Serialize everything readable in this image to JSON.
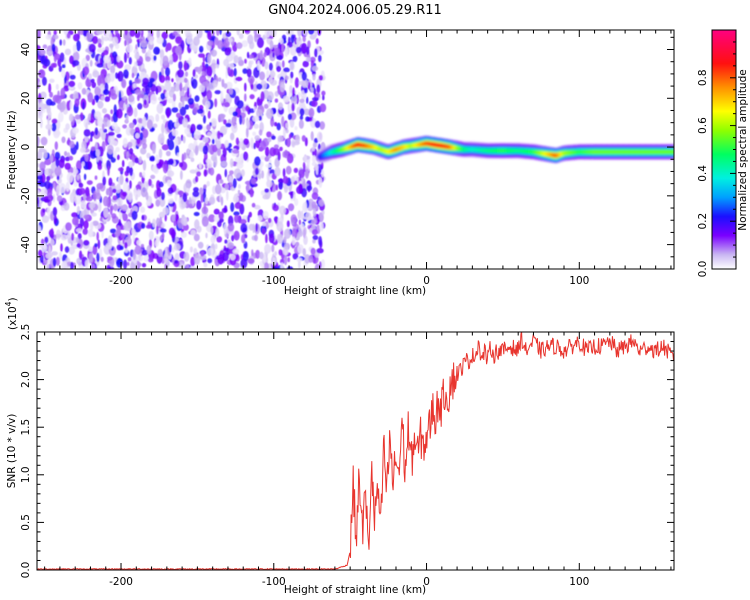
{
  "title": "GN04.2024.006.05.29.R11",
  "chart_data": [
    {
      "type": "heatmap",
      "xlabel": "Height of straight line (km)",
      "ylabel": "Frequency (Hz)",
      "xlim": [
        -255,
        162
      ],
      "ylim": [
        -50,
        48
      ],
      "x_ticks": [
        -200,
        -100,
        0,
        100
      ],
      "x_tick_labels": [
        "-200",
        "-100",
        "0",
        "100"
      ],
      "y_ticks": [
        -40,
        -20,
        0,
        20,
        40
      ],
      "y_tick_labels": [
        "-40",
        "-20",
        "0",
        "20",
        "40"
      ],
      "noise_region_x": [
        -255,
        -70
      ],
      "signal_track": {
        "x": [
          -70,
          -62,
          -55,
          -50,
          -45,
          -40,
          -35,
          -30,
          -25,
          -20,
          -15,
          -10,
          -5,
          0,
          5,
          10,
          15,
          20,
          25,
          30,
          40,
          50,
          60,
          70,
          80,
          85,
          90,
          100,
          110,
          120,
          130,
          140,
          150,
          162
        ],
        "y": [
          -4,
          -2,
          -1,
          0,
          1,
          0.5,
          0,
          -1,
          -2,
          -1,
          0,
          0.5,
          1,
          1.5,
          1,
          0.5,
          0,
          -0.5,
          -1,
          -1,
          -1.5,
          -1.5,
          -1.5,
          -2,
          -3,
          -3.5,
          -2.5,
          -2,
          -2,
          -2,
          -2,
          -2,
          -2,
          -2
        ],
        "amplitude": [
          0.2,
          0.4,
          0.55,
          0.7,
          0.85,
          0.8,
          0.7,
          0.6,
          0.65,
          0.75,
          0.7,
          0.6,
          0.7,
          0.8,
          0.85,
          0.85,
          0.8,
          0.6,
          0.45,
          0.4,
          0.45,
          0.5,
          0.45,
          0.5,
          0.7,
          0.8,
          0.6,
          0.5,
          0.55,
          0.55,
          0.55,
          0.55,
          0.55,
          0.55
        ]
      },
      "colorbar": {
        "label": "Normalized spectral amplitude",
        "range": [
          0,
          1
        ],
        "ticks": [
          0.0,
          0.2,
          0.4,
          0.6,
          0.8
        ],
        "tick_labels": [
          "0.0",
          "0.2",
          "0.4",
          "0.6",
          "0.8"
        ]
      }
    },
    {
      "type": "line",
      "xlabel": "Height of straight line (km)",
      "ylabel": "SNR (10 * v/v)",
      "scale_label": "(x10",
      "scale_exponent": "4",
      "scale_suffix": ")",
      "xlim": [
        -255,
        162
      ],
      "ylim": [
        0,
        2.5
      ],
      "x_ticks": [
        -200,
        -100,
        0,
        100
      ],
      "x_tick_labels": [
        "-200",
        "-100",
        "0",
        "100"
      ],
      "y_ticks": [
        0.0,
        0.5,
        1.0,
        1.5,
        2.0,
        2.5
      ],
      "y_tick_labels": [
        "0.0",
        "0.5",
        "1.0",
        "1.5",
        "2.0",
        "2.5"
      ],
      "series": [
        {
          "color": "#e8352e",
          "x": [
            -255,
            -200,
            -150,
            -100,
            -60,
            -52,
            -50,
            -48,
            -46,
            -44,
            -42,
            -40,
            -38,
            -36,
            -34,
            -32,
            -30,
            -28,
            -26,
            -24,
            -22,
            -20,
            -18,
            -16,
            -14,
            -12,
            -10,
            -8,
            -6,
            -4,
            -2,
            0,
            2,
            4,
            6,
            8,
            10,
            12,
            14,
            16,
            18,
            20,
            22,
            24,
            26,
            28,
            30,
            32,
            34,
            36,
            38,
            40,
            42,
            44,
            46,
            48,
            50,
            55,
            60,
            62,
            65,
            70,
            75,
            80,
            85,
            90,
            95,
            100,
            105,
            110,
            115,
            120,
            125,
            130,
            135,
            140,
            145,
            150,
            155,
            160,
            162
          ],
          "y": [
            0.01,
            0.01,
            0.01,
            0.01,
            0.01,
            0.05,
            0.2,
            0.9,
            0.3,
            1.0,
            0.4,
            0.8,
            0.2,
            1.1,
            0.5,
            0.9,
            0.4,
            1.3,
            0.8,
            1.4,
            0.9,
            1.2,
            1.0,
            1.6,
            1.0,
            1.5,
            1.1,
            1.4,
            1.2,
            1.4,
            1.3,
            1.4,
            1.5,
            1.7,
            1.6,
            1.8,
            1.7,
            1.9,
            1.8,
            2.0,
            2.0,
            2.05,
            2.1,
            2.15,
            2.2,
            2.2,
            2.25,
            2.25,
            2.4,
            2.2,
            2.3,
            2.2,
            2.35,
            2.25,
            2.3,
            2.3,
            2.3,
            2.35,
            2.3,
            2.45,
            2.3,
            2.4,
            2.3,
            2.35,
            2.35,
            2.3,
            2.35,
            2.4,
            2.3,
            2.35,
            2.35,
            2.4,
            2.3,
            2.35,
            2.4,
            2.3,
            2.35,
            2.3,
            2.35,
            2.25,
            2.2
          ]
        }
      ]
    }
  ]
}
